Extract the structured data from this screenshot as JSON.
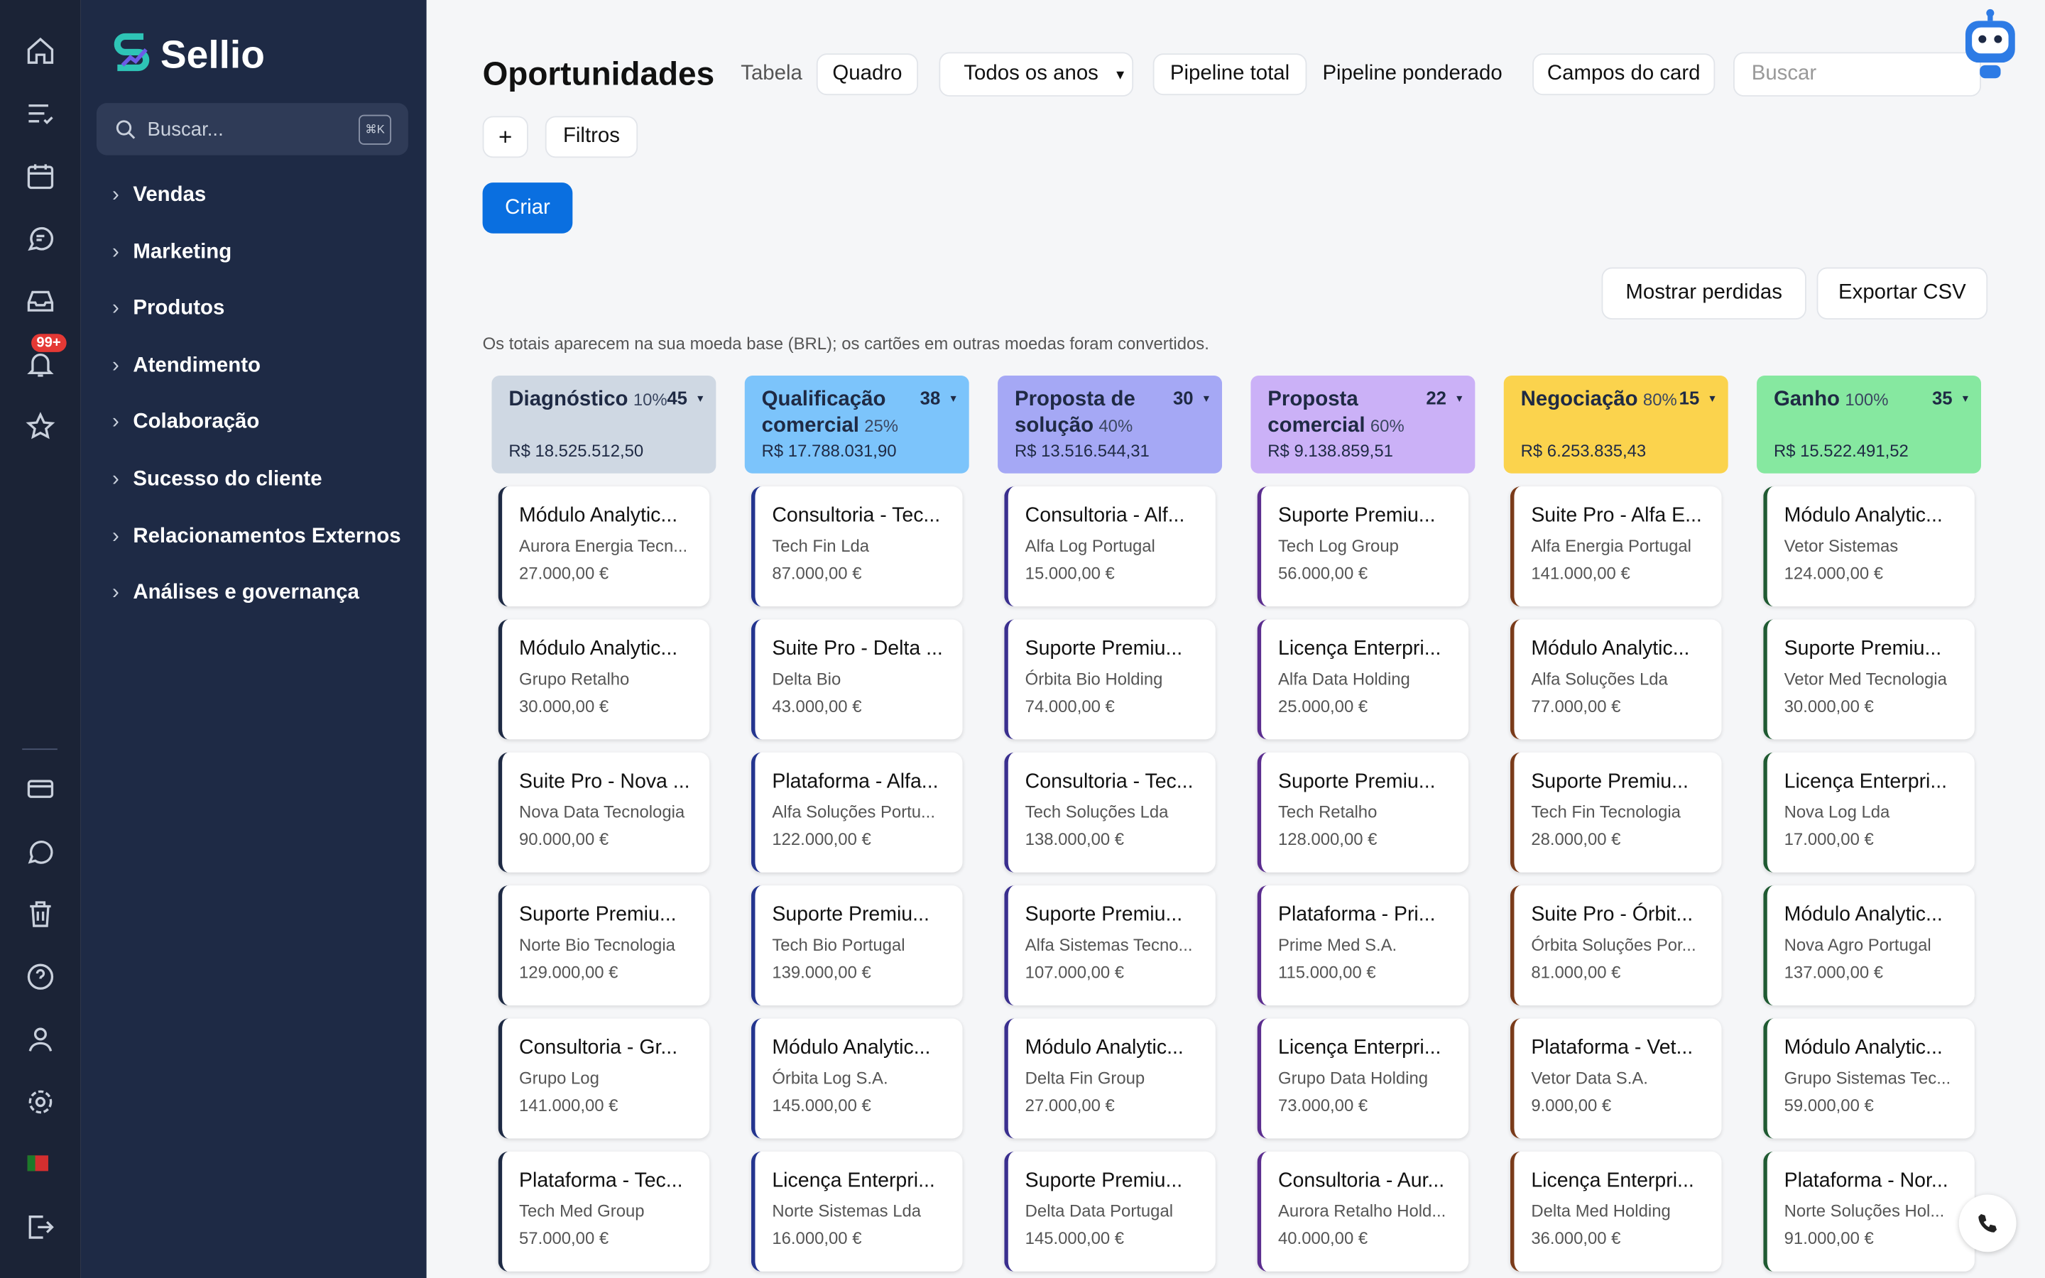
{
  "sidebar": {
    "logo": "Sellio",
    "search": "Buscar...",
    "shortcut": "⌘K",
    "badge": "99+",
    "nav": [
      "Vendas",
      "Marketing",
      "Produtos",
      "Atendimento",
      "Colaboração",
      "Sucesso do cliente",
      "Relacionamentos Externos",
      "Análises e governança"
    ]
  },
  "header": {
    "title": "Oportunidades",
    "tabs": [
      "Tabela",
      "Quadro"
    ],
    "year_select": "Todos os anos",
    "pipeline": [
      "Pipeline total",
      "Pipeline ponderado"
    ],
    "card_fields": "Campos do card",
    "search": "Buscar",
    "add": "+",
    "filters": "Filtros",
    "create": "Criar",
    "show_lost": "Mostrar perdidas",
    "export": "Exportar CSV",
    "note": "Os totais aparecem na sua moeda base (BRL); os cartões em outras moedas foram convertidos."
  },
  "board": {
    "columns": [
      {
        "name": "Diagnóstico",
        "percent": "10%",
        "count": "45",
        "total": "R$ 18.525.512,50",
        "color": "#cfd8e3",
        "border": "#1e2a44",
        "cards": [
          {
            "title": "Módulo Analytic...",
            "company": "Aurora Energia Tecn...",
            "amount": "27.000,00 €"
          },
          {
            "title": "Módulo Analytic...",
            "company": "Grupo Retalho",
            "amount": "30.000,00 €"
          },
          {
            "title": "Suite Pro - Nova ...",
            "company": "Nova Data Tecnologia",
            "amount": "90.000,00 €"
          },
          {
            "title": "Suporte Premiu...",
            "company": "Norte Bio Tecnologia",
            "amount": "129.000,00 €"
          },
          {
            "title": "Consultoria - Gr...",
            "company": "Grupo Log",
            "amount": "141.000,00 €"
          },
          {
            "title": "Plataforma - Tec...",
            "company": "Tech Med Group",
            "amount": "57.000,00 €"
          }
        ]
      },
      {
        "name": "Qualificação comercial",
        "percent": "25%",
        "count": "38",
        "total": "R$ 17.788.031,90",
        "color": "#7cc4fb",
        "border": "#24358f",
        "cards": [
          {
            "title": "Consultoria - Tec...",
            "company": "Tech Fin Lda",
            "amount": "87.000,00 €"
          },
          {
            "title": "Suite Pro - Delta ...",
            "company": "Delta Bio",
            "amount": "43.000,00 €"
          },
          {
            "title": "Plataforma - Alfa...",
            "company": "Alfa Soluções Portu...",
            "amount": "122.000,00 €"
          },
          {
            "title": "Suporte Premiu...",
            "company": "Tech Bio Portugal",
            "amount": "139.000,00 €"
          },
          {
            "title": "Módulo Analytic...",
            "company": "Órbita Log S.A.",
            "amount": "145.000,00 €"
          },
          {
            "title": "Licença Enterpri...",
            "company": "Norte Sistemas Lda",
            "amount": "16.000,00 €"
          }
        ]
      },
      {
        "name": "Proposta de solução",
        "percent": "40%",
        "count": "30",
        "total": "R$ 13.516.544,31",
        "color": "#a5a8f5",
        "border": "#3a2f8f",
        "cards": [
          {
            "title": "Consultoria - Alf...",
            "company": "Alfa Log Portugal",
            "amount": "15.000,00 €"
          },
          {
            "title": "Suporte Premiu...",
            "company": "Órbita Bio Holding",
            "amount": "74.000,00 €"
          },
          {
            "title": "Consultoria - Tec...",
            "company": "Tech Soluções Lda",
            "amount": "138.000,00 €"
          },
          {
            "title": "Suporte Premiu...",
            "company": "Alfa Sistemas Tecno...",
            "amount": "107.000,00 €"
          },
          {
            "title": "Módulo Analytic...",
            "company": "Delta Fin Group",
            "amount": "27.000,00 €"
          },
          {
            "title": "Suporte Premiu...",
            "company": "Delta Data Portugal",
            "amount": "145.000,00 €"
          }
        ]
      },
      {
        "name": "Proposta comercial",
        "percent": "60%",
        "count": "22",
        "total": "R$ 9.138.859,51",
        "color": "#cbb1f7",
        "border": "#5b2d8f",
        "cards": [
          {
            "title": "Suporte Premiu...",
            "company": "Tech Log Group",
            "amount": "56.000,00 €"
          },
          {
            "title": "Licença Enterpri...",
            "company": "Alfa Data Holding",
            "amount": "25.000,00 €"
          },
          {
            "title": "Suporte Premiu...",
            "company": "Tech Retalho",
            "amount": "128.000,00 €"
          },
          {
            "title": "Plataforma - Pri...",
            "company": "Prime Med S.A.",
            "amount": "115.000,00 €"
          },
          {
            "title": "Licença Enterpri...",
            "company": "Grupo Data Holding",
            "amount": "73.000,00 €"
          },
          {
            "title": "Consultoria - Aur...",
            "company": "Aurora Retalho Hold...",
            "amount": "40.000,00 €"
          }
        ]
      },
      {
        "name": "Negociação",
        "percent": "80%",
        "count": "15",
        "total": "R$ 6.253.835,43",
        "color": "#fbd34d",
        "border": "#7a3b1a",
        "cards": [
          {
            "title": "Suite Pro - Alfa E...",
            "company": "Alfa Energia Portugal",
            "amount": "141.000,00 €"
          },
          {
            "title": "Módulo Analytic...",
            "company": "Alfa Soluções Lda",
            "amount": "77.000,00 €"
          },
          {
            "title": "Suporte Premiu...",
            "company": "Tech Fin Tecnologia",
            "amount": "28.000,00 €"
          },
          {
            "title": "Suite Pro - Órbit...",
            "company": "Órbita Soluções Por...",
            "amount": "81.000,00 €"
          },
          {
            "title": "Plataforma - Vet...",
            "company": "Vetor Data S.A.",
            "amount": "9.000,00 €"
          },
          {
            "title": "Licença Enterpri...",
            "company": "Delta Med Holding",
            "amount": "36.000,00 €"
          }
        ]
      },
      {
        "name": "Ganho",
        "percent": "100%",
        "count": "35",
        "total": "R$ 15.522.491,52",
        "color": "#86e8a0",
        "border": "#1f5a32",
        "cards": [
          {
            "title": "Módulo Analytic...",
            "company": "Vetor Sistemas",
            "amount": "124.000,00 €"
          },
          {
            "title": "Suporte Premiu...",
            "company": "Vetor Med Tecnologia",
            "amount": "30.000,00 €"
          },
          {
            "title": "Licença Enterpri...",
            "company": "Nova Log Lda",
            "amount": "17.000,00 €"
          },
          {
            "title": "Módulo Analytic...",
            "company": "Nova Agro Portugal",
            "amount": "137.000,00 €"
          },
          {
            "title": "Módulo Analytic...",
            "company": "Grupo Sistemas Tec...",
            "amount": "59.000,00 €"
          },
          {
            "title": "Plataforma - Nor...",
            "company": "Norte Soluções Hol...",
            "amount": "91.000,00 €"
          }
        ]
      }
    ]
  }
}
